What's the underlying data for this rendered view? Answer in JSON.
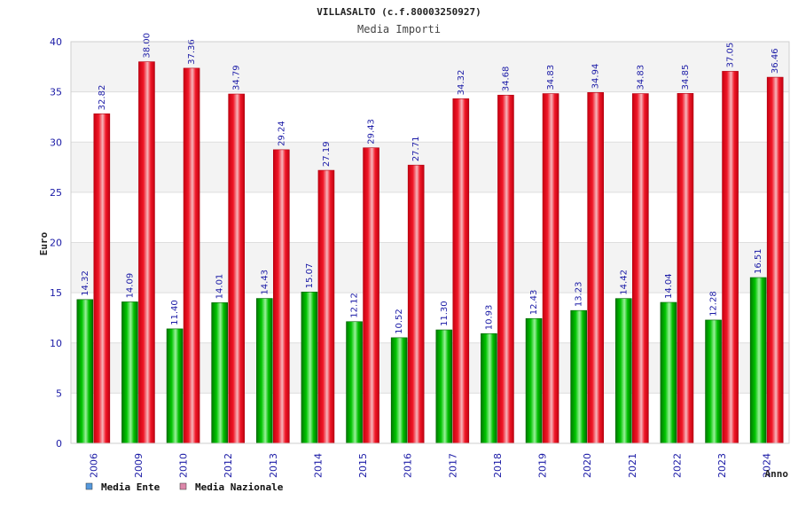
{
  "chart_data": {
    "type": "bar",
    "title": "VILLASALTO (c.f.80003250927)",
    "subtitle": "Media Importi",
    "ylabel": "Euro",
    "xlabel": "Anno",
    "ylim": [
      0,
      40
    ],
    "yticks": [
      0,
      5,
      10,
      15,
      20,
      25,
      30,
      35,
      40
    ],
    "grid": true,
    "legend_position": "bottom-left",
    "categories": [
      "2006",
      "2009",
      "2010",
      "2012",
      "2013",
      "2014",
      "2015",
      "2016",
      "2017",
      "2018",
      "2019",
      "2020",
      "2021",
      "2022",
      "2023",
      "2024"
    ],
    "series": [
      {
        "name": "Media Ente",
        "color": "#00b000",
        "legend_color": "#5599dd",
        "values": [
          14.32,
          14.09,
          11.4,
          14.01,
          14.43,
          15.07,
          12.12,
          10.52,
          11.3,
          10.93,
          12.43,
          13.23,
          14.42,
          14.04,
          12.28,
          16.51
        ],
        "labels": [
          "14.32",
          "14.09",
          "11.40",
          "14.01",
          "14.43",
          "15.07",
          "12.12",
          "10.52",
          "11.30",
          "10.93",
          "12.43",
          "13.23",
          "14.42",
          "14.04",
          "12.28",
          "16.51"
        ]
      },
      {
        "name": "Media Nazionale",
        "color": "#e8101e",
        "legend_color": "#dd88aa",
        "values": [
          32.82,
          38.0,
          37.36,
          34.79,
          29.24,
          27.19,
          29.43,
          27.71,
          34.32,
          34.68,
          34.83,
          34.94,
          34.83,
          34.85,
          37.05,
          36.46
        ],
        "labels": [
          "32.82",
          "38.00",
          "37.36",
          "34.79",
          "29.24",
          "27.19",
          "29.43",
          "27.71",
          "34.32",
          "34.68",
          "34.83",
          "34.94",
          "34.83",
          "34.85",
          "37.05",
          "36.46"
        ]
      }
    ]
  }
}
